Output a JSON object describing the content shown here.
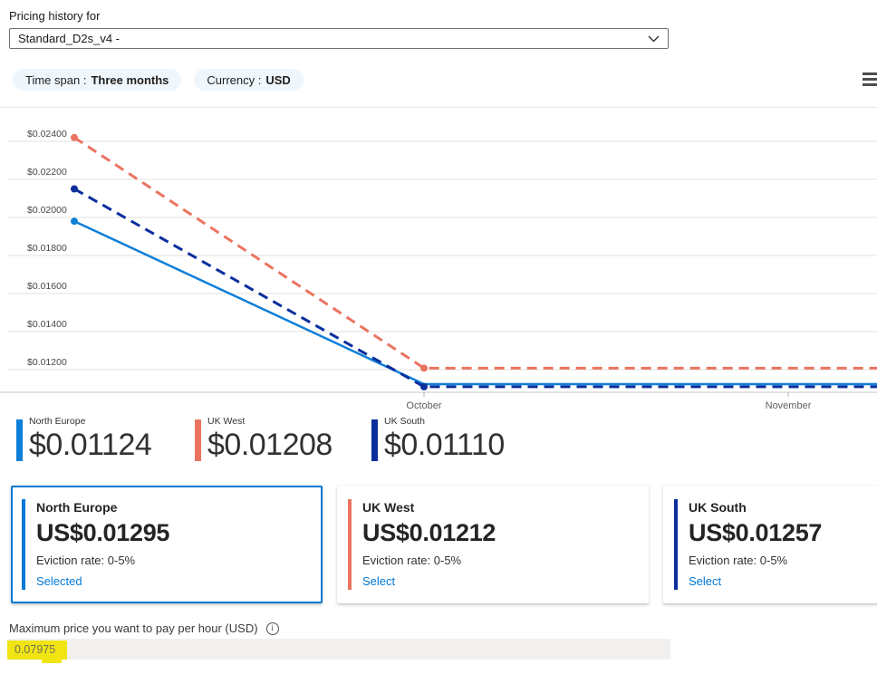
{
  "header": {
    "label": "Pricing history for",
    "dropdown": {
      "value": "Standard_D2s_v4 -"
    },
    "filters": [
      {
        "label": "Time span :",
        "value": "Three months"
      },
      {
        "label": "Currency :",
        "value": "USD"
      }
    ],
    "icons": {
      "dropdown": "chevron-down",
      "menu": "hamburger"
    }
  },
  "chart_data": {
    "type": "line",
    "y_ticks": [
      "$0.02400",
      "$0.02200",
      "$0.02000",
      "$0.01800",
      "$0.01600",
      "$0.01400",
      "$0.01200"
    ],
    "x_ticks": [
      "October",
      "November"
    ],
    "y_range": [
      0.0115,
      0.0245
    ],
    "grid": true,
    "series": [
      {
        "name": "North Europe",
        "color": "#0F7FD8",
        "style": "solid",
        "points": [
          {
            "x": "start",
            "y": 0.0198
          },
          {
            "x": "October",
            "y": 0.01124
          },
          {
            "x": "end",
            "y": 0.01124
          }
        ],
        "dots": [
          0
        ]
      },
      {
        "name": "UK West",
        "color": "#EA7460",
        "style": "dashed",
        "points": [
          {
            "x": "start",
            "y": 0.0242
          },
          {
            "x": "October",
            "y": 0.01208
          },
          {
            "x": "end",
            "y": 0.01208
          }
        ],
        "dots": [
          0,
          1
        ]
      },
      {
        "name": "UK South",
        "color": "#0B2E9C",
        "style": "dashed",
        "points": [
          {
            "x": "start",
            "y": 0.0215
          },
          {
            "x": "October",
            "y": 0.0111
          },
          {
            "x": "end",
            "y": 0.0111
          }
        ],
        "dots": [
          0,
          1
        ]
      }
    ],
    "legend": [
      {
        "name": "North Europe",
        "value": "$0.01124",
        "color": "#0F7FD8"
      },
      {
        "name": "UK West",
        "value": "$0.01208",
        "color": "#EA7460"
      },
      {
        "name": "UK South",
        "value": "$0.01110",
        "color": "#0B2E9C"
      }
    ],
    "legend_position": "bottom-left"
  },
  "cards": [
    {
      "region": "North Europe",
      "price": "US$0.01295",
      "eviction": "Eviction rate: 0-5%",
      "action": "Selected",
      "accent": "#0078D4",
      "selected": true
    },
    {
      "region": "UK West",
      "price": "US$0.01212",
      "eviction": "Eviction rate: 0-5%",
      "action": "Select",
      "accent": "#EA7460",
      "selected": false
    },
    {
      "region": "UK South",
      "price": "US$0.01257",
      "eviction": "Eviction rate: 0-5%",
      "action": "Select",
      "accent": "#0B2E9C",
      "selected": false
    }
  ],
  "max_price": {
    "label": "Maximum price you want to pay per hour (USD)",
    "value": "0.07975",
    "highlight_color": "#F0E513",
    "info_glyph": "i"
  }
}
